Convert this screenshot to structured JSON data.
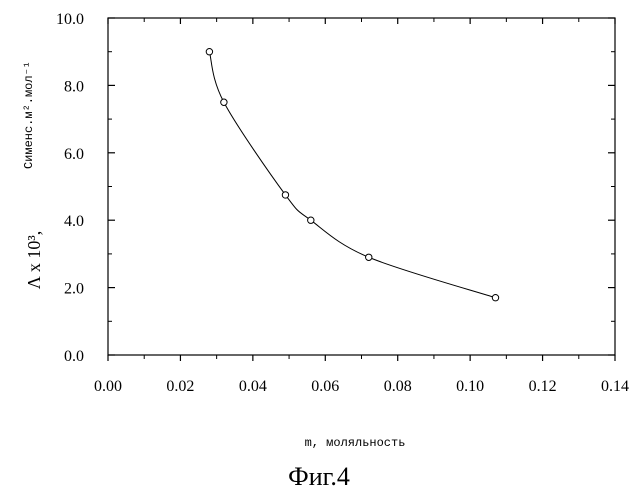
{
  "chart_data": {
    "type": "line",
    "x": [
      0.028,
      0.032,
      0.049,
      0.056,
      0.072,
      0.107
    ],
    "series": [
      {
        "values": [
          9.0,
          7.5,
          4.75,
          4.0,
          2.9,
          1.7
        ],
        "color": "#000000"
      }
    ],
    "xlabel": "m, моляльность",
    "ylabel": "Λ x 10³, Сименс.м².моль⁻¹",
    "ylabel_main": "Λ x 10³,",
    "ylabel_units": "Сименс.м².мол⁻¹",
    "xlim": [
      0.0,
      0.14
    ],
    "ylim": [
      0.0,
      10.0
    ],
    "x_ticks": [
      "0.00",
      "0.02",
      "0.04",
      "0.06",
      "0.08",
      "0.10",
      "0.12",
      "0.14"
    ],
    "y_ticks": [
      "0.0",
      "2.0",
      "4.0",
      "6.0",
      "8.0",
      "10.0"
    ],
    "grid": false,
    "marker": "open-circle"
  },
  "caption": "Фиг.4"
}
